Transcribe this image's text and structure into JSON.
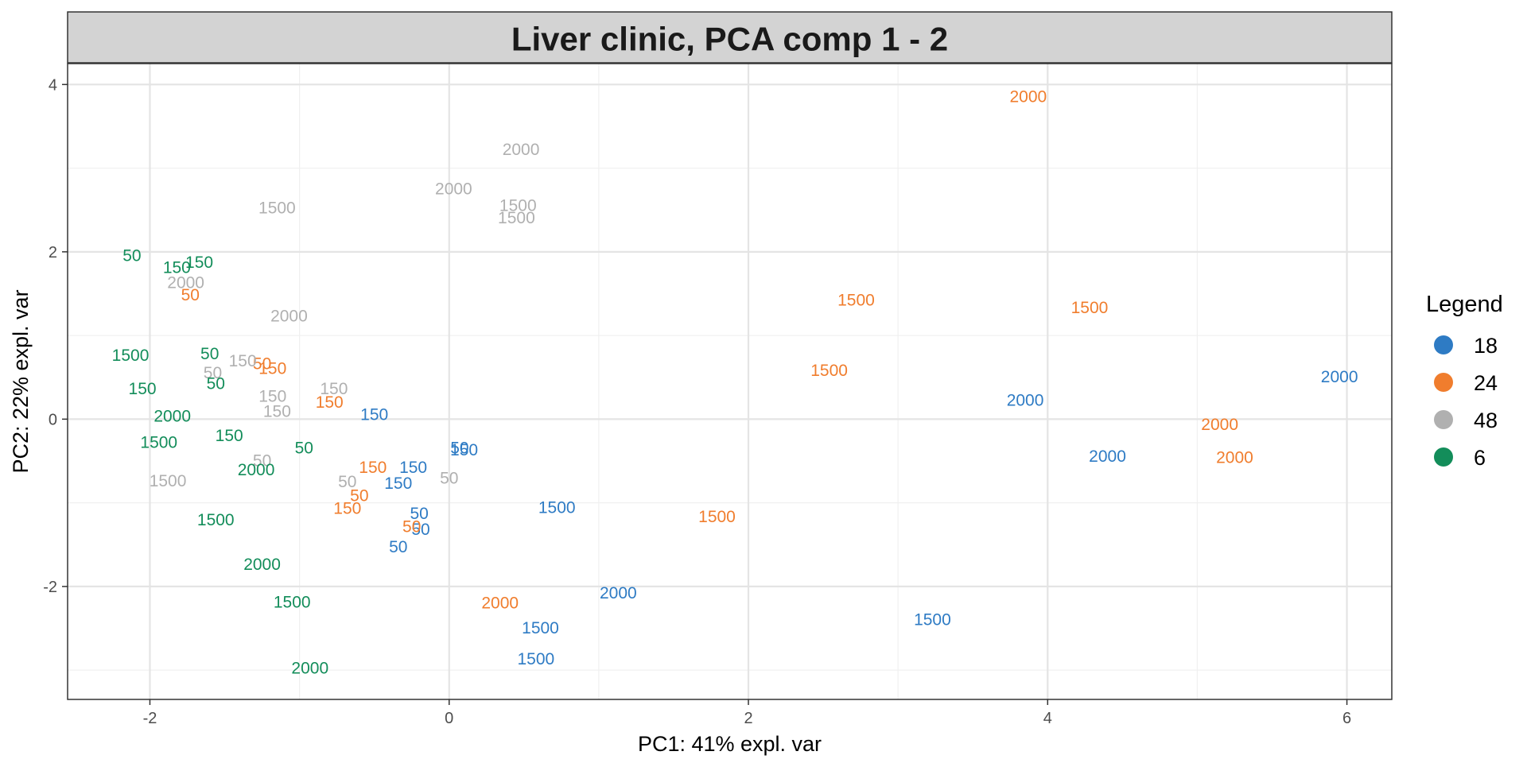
{
  "chart_data": {
    "type": "scatter",
    "title": "Liver clinic, PCA comp 1 - 2",
    "xlabel": "PC1: 41% expl. var",
    "ylabel": "PC2: 22% expl. var",
    "xlim": [
      -2.55,
      6.3
    ],
    "ylim": [
      -3.35,
      4.25
    ],
    "xticks": [
      -2,
      0,
      2,
      4,
      6
    ],
    "yticks": [
      -2,
      0,
      2,
      4
    ],
    "grid": true,
    "legend": {
      "title": "Legend",
      "position": "right"
    },
    "colors": {
      "18": "#2e7bc4",
      "24": "#f07d2d",
      "48": "#b0b0b0",
      "6": "#138d5a"
    },
    "series": [
      {
        "name": "18",
        "points": [
          {
            "x": 5.95,
            "y": 0.5,
            "label": "2000"
          },
          {
            "x": 3.85,
            "y": 0.22,
            "label": "2000"
          },
          {
            "x": 4.4,
            "y": -0.45,
            "label": "2000"
          },
          {
            "x": 1.13,
            "y": -2.08,
            "label": "2000"
          },
          {
            "x": 0.72,
            "y": -1.06,
            "label": "1500"
          },
          {
            "x": 3.23,
            "y": -2.4,
            "label": "1500"
          },
          {
            "x": 0.61,
            "y": -2.5,
            "label": "1500"
          },
          {
            "x": 0.58,
            "y": -2.87,
            "label": "1500"
          },
          {
            "x": -0.5,
            "y": 0.05,
            "label": "150"
          },
          {
            "x": -0.24,
            "y": -0.58,
            "label": "150"
          },
          {
            "x": -0.34,
            "y": -0.77,
            "label": "150"
          },
          {
            "x": 0.1,
            "y": -0.37,
            "label": "150"
          },
          {
            "x": 0.07,
            "y": -0.35,
            "label": "50"
          },
          {
            "x": -0.2,
            "y": -1.13,
            "label": "50"
          },
          {
            "x": -0.19,
            "y": -1.32,
            "label": "50"
          },
          {
            "x": -0.34,
            "y": -1.53,
            "label": "50"
          }
        ]
      },
      {
        "name": "24",
        "points": [
          {
            "x": 3.87,
            "y": 3.85,
            "label": "2000"
          },
          {
            "x": 5.15,
            "y": -0.07,
            "label": "2000"
          },
          {
            "x": 5.25,
            "y": -0.46,
            "label": "2000"
          },
          {
            "x": 0.34,
            "y": -2.2,
            "label": "2000"
          },
          {
            "x": 2.72,
            "y": 1.42,
            "label": "1500"
          },
          {
            "x": 4.28,
            "y": 1.33,
            "label": "1500"
          },
          {
            "x": 2.54,
            "y": 0.58,
            "label": "1500"
          },
          {
            "x": 1.79,
            "y": -1.17,
            "label": "1500"
          },
          {
            "x": -1.18,
            "y": 0.6,
            "label": "150"
          },
          {
            "x": -0.8,
            "y": 0.2,
            "label": "150"
          },
          {
            "x": -0.51,
            "y": -0.58,
            "label": "150"
          },
          {
            "x": -0.68,
            "y": -1.07,
            "label": "150"
          },
          {
            "x": -1.73,
            "y": 1.48,
            "label": "50"
          },
          {
            "x": -1.25,
            "y": 0.66,
            "label": "50"
          },
          {
            "x": -0.6,
            "y": -0.92,
            "label": "50"
          },
          {
            "x": -0.25,
            "y": -1.29,
            "label": "50"
          }
        ]
      },
      {
        "name": "48",
        "points": [
          {
            "x": 0.48,
            "y": 3.22,
            "label": "2000"
          },
          {
            "x": 0.03,
            "y": 2.75,
            "label": "2000"
          },
          {
            "x": -1.76,
            "y": 1.63,
            "label": "2000"
          },
          {
            "x": -1.07,
            "y": 1.23,
            "label": "2000"
          },
          {
            "x": -1.15,
            "y": 2.52,
            "label": "1500"
          },
          {
            "x": 0.46,
            "y": 2.55,
            "label": "1500"
          },
          {
            "x": 0.45,
            "y": 2.4,
            "label": "1500"
          },
          {
            "x": -1.88,
            "y": -0.74,
            "label": "1500"
          },
          {
            "x": -1.38,
            "y": 0.69,
            "label": "150"
          },
          {
            "x": -0.77,
            "y": 0.36,
            "label": "150"
          },
          {
            "x": -1.18,
            "y": 0.27,
            "label": "150"
          },
          {
            "x": -1.15,
            "y": 0.09,
            "label": "150"
          },
          {
            "x": -1.58,
            "y": 0.55,
            "label": "50"
          },
          {
            "x": -1.25,
            "y": -0.5,
            "label": "50"
          },
          {
            "x": -0.68,
            "y": -0.75,
            "label": "50"
          },
          {
            "x": 0.0,
            "y": -0.71,
            "label": "50"
          }
        ]
      },
      {
        "name": "6",
        "points": [
          {
            "x": -1.82,
            "y": 1.81,
            "label": "150"
          },
          {
            "x": -1.67,
            "y": 1.87,
            "label": "150"
          },
          {
            "x": -2.12,
            "y": 1.95,
            "label": "50"
          },
          {
            "x": -2.13,
            "y": 0.76,
            "label": "1500"
          },
          {
            "x": -1.6,
            "y": 0.78,
            "label": "50"
          },
          {
            "x": -2.05,
            "y": 0.36,
            "label": "150"
          },
          {
            "x": -1.56,
            "y": 0.42,
            "label": "50"
          },
          {
            "x": -1.85,
            "y": 0.03,
            "label": "2000"
          },
          {
            "x": -1.94,
            "y": -0.28,
            "label": "1500"
          },
          {
            "x": -1.47,
            "y": -0.2,
            "label": "150"
          },
          {
            "x": -0.97,
            "y": -0.35,
            "label": "50"
          },
          {
            "x": -1.29,
            "y": -0.61,
            "label": "2000"
          },
          {
            "x": -1.56,
            "y": -1.21,
            "label": "1500"
          },
          {
            "x": -1.25,
            "y": -1.74,
            "label": "2000"
          },
          {
            "x": -1.05,
            "y": -2.19,
            "label": "1500"
          },
          {
            "x": -0.93,
            "y": -2.98,
            "label": "2000"
          }
        ]
      }
    ]
  }
}
